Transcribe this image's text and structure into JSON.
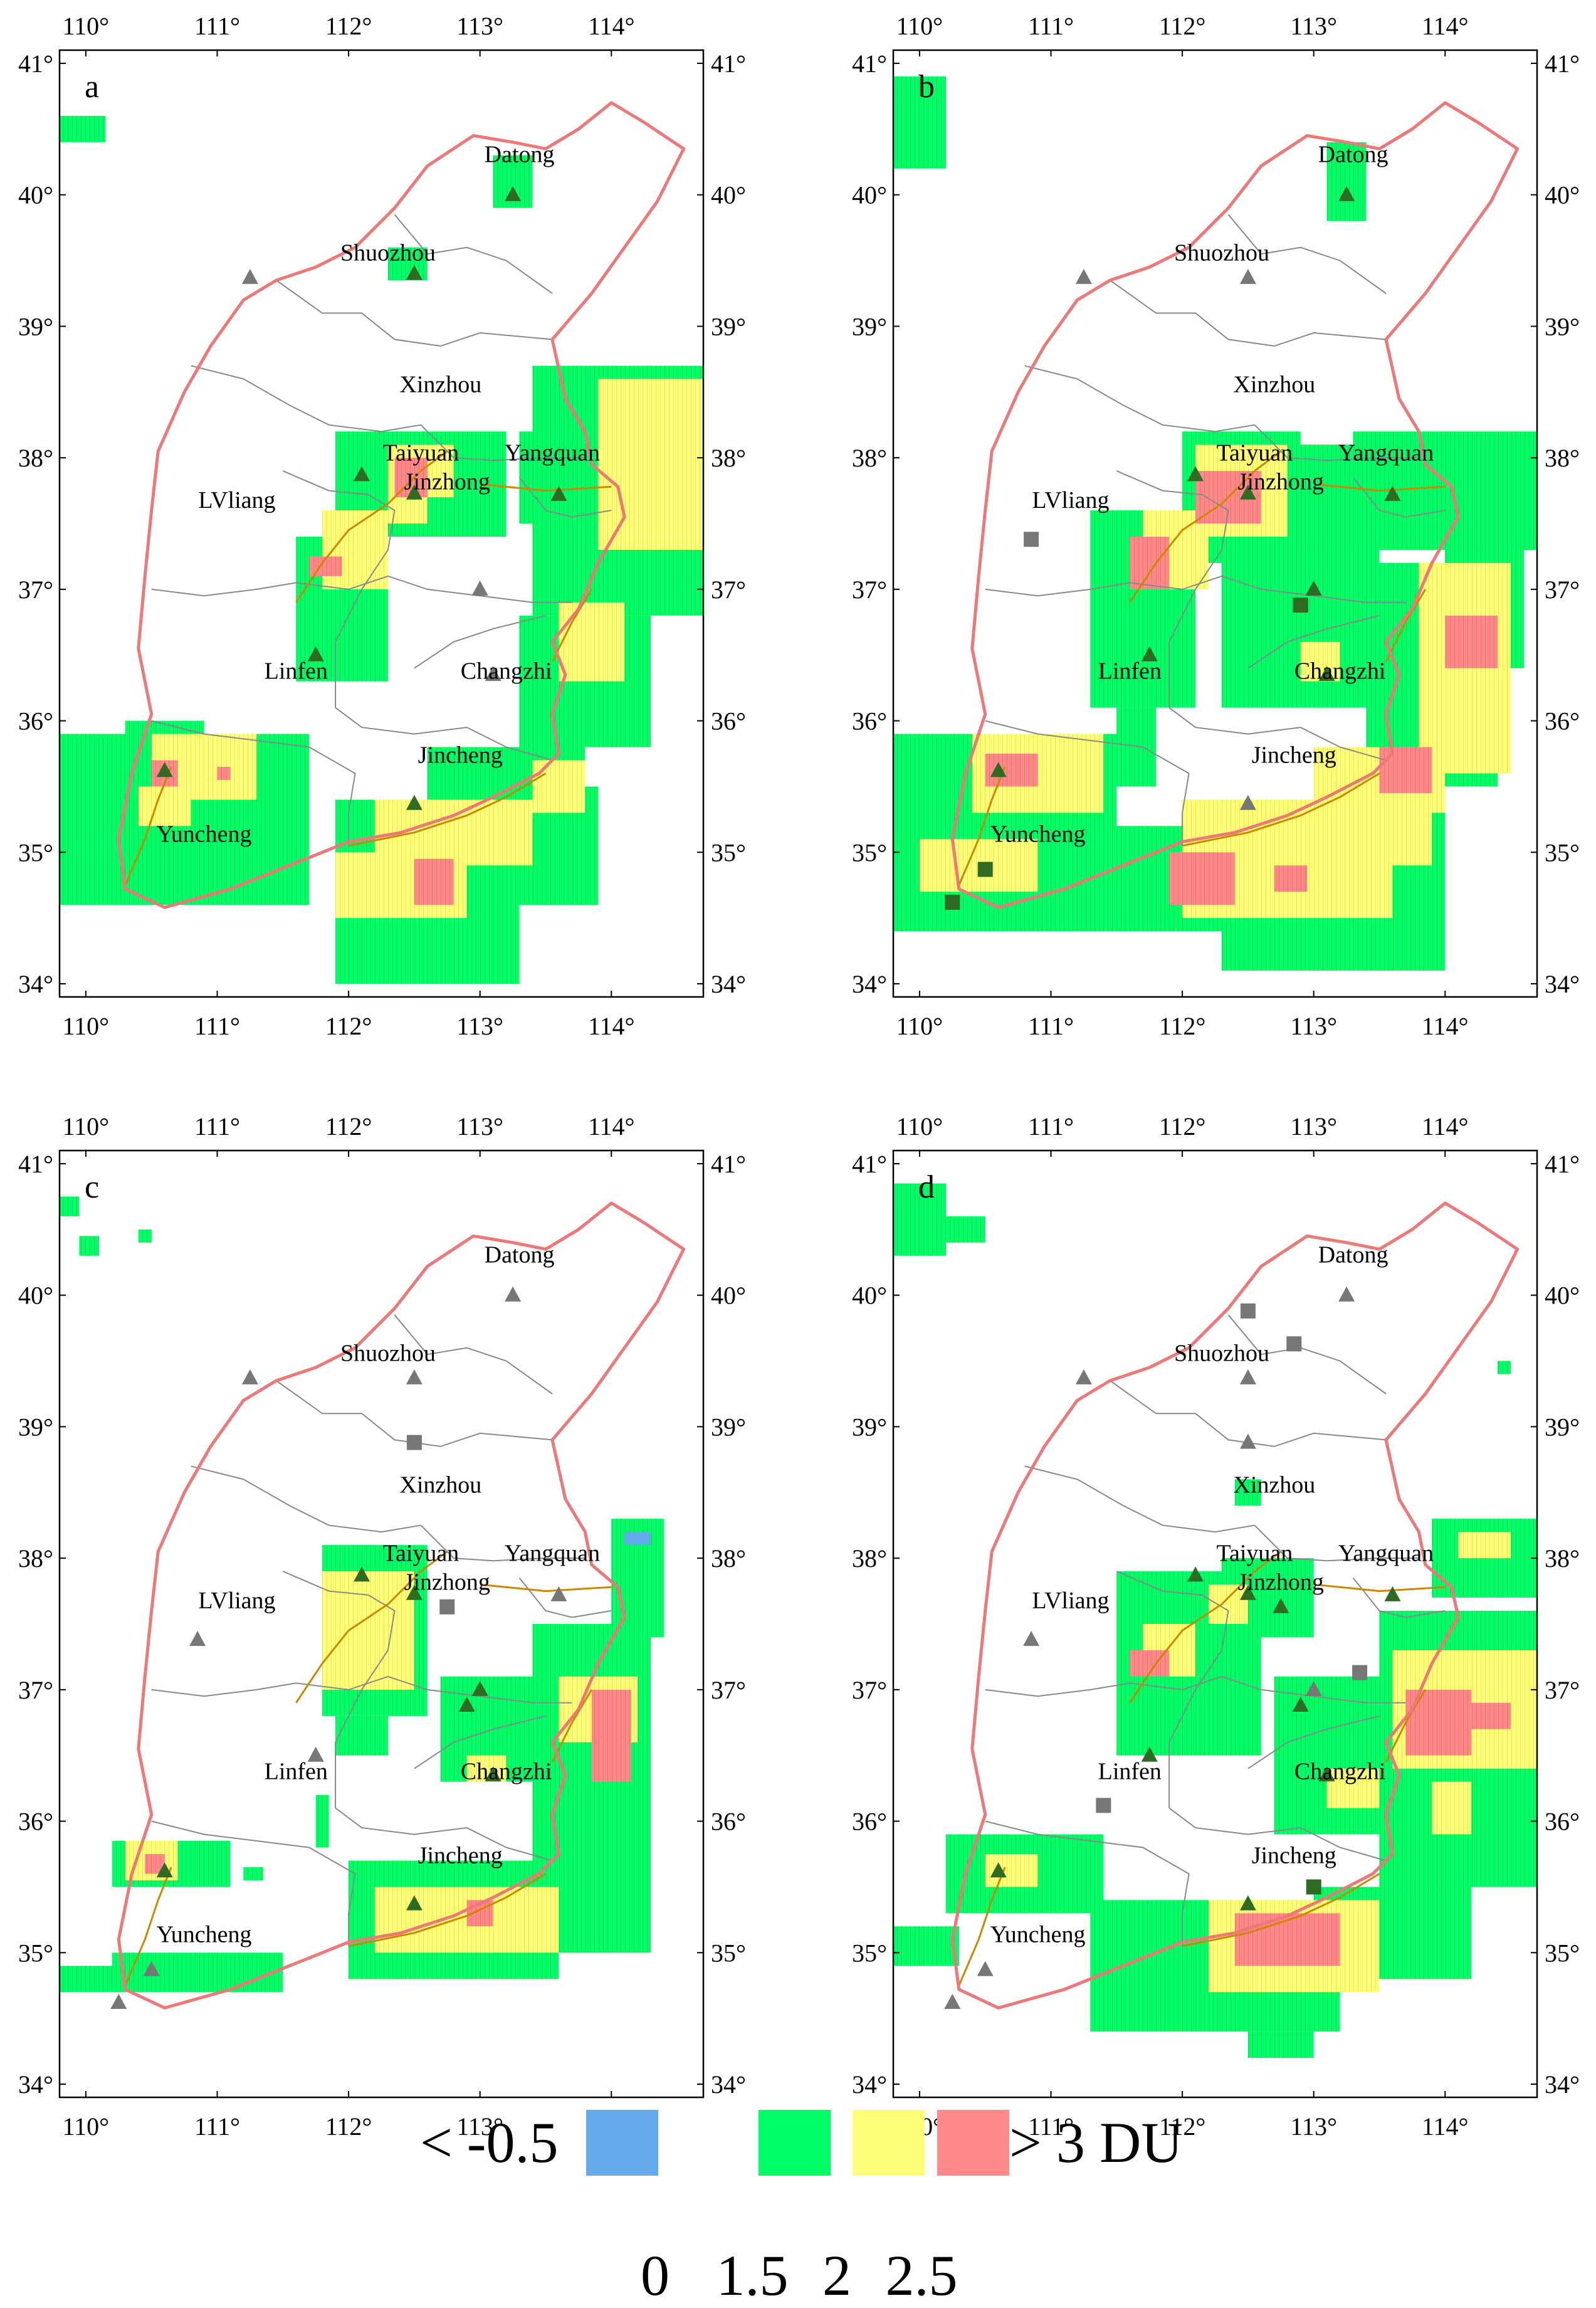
{
  "figure": {
    "panels": [
      {
        "letter": "a",
        "cities": [
          {
            "name": "Datong",
            "lon": 113.3,
            "lat": 40.25
          },
          {
            "name": "Shuozhou",
            "lon": 112.3,
            "lat": 39.5
          },
          {
            "name": "Xinzhou",
            "lon": 112.7,
            "lat": 38.5
          },
          {
            "name": "Taiyuan",
            "lon": 112.55,
            "lat": 37.98
          },
          {
            "name": "Yangquan",
            "lon": 113.55,
            "lat": 37.98
          },
          {
            "name": "Jinzhong",
            "lon": 112.75,
            "lat": 37.76
          },
          {
            "name": "LVliang",
            "lon": 111.15,
            "lat": 37.62
          },
          {
            "name": "Linfen",
            "lon": 111.6,
            "lat": 36.32
          },
          {
            "name": "Changzhi",
            "lon": 113.2,
            "lat": 36.32
          },
          {
            "name": "Jincheng",
            "lon": 112.85,
            "lat": 35.68
          },
          {
            "name": "Yuncheng",
            "lon": 110.9,
            "lat": 35.08
          }
        ]
      },
      {
        "letter": "b",
        "cities": [
          {
            "name": "Datong",
            "lon": 113.3,
            "lat": 40.25
          },
          {
            "name": "Shuozhou",
            "lon": 112.3,
            "lat": 39.5
          },
          {
            "name": "Xinzhou",
            "lon": 112.7,
            "lat": 38.5
          },
          {
            "name": "Taiyuan",
            "lon": 112.55,
            "lat": 37.98
          },
          {
            "name": "Yangquan",
            "lon": 113.55,
            "lat": 37.98
          },
          {
            "name": "Jinzhong",
            "lon": 112.75,
            "lat": 37.76
          },
          {
            "name": "LVliang",
            "lon": 111.15,
            "lat": 37.62
          },
          {
            "name": "Linfen",
            "lon": 111.6,
            "lat": 36.32
          },
          {
            "name": "Changzhi",
            "lon": 113.2,
            "lat": 36.32
          },
          {
            "name": "Jincheng",
            "lon": 112.85,
            "lat": 35.68
          },
          {
            "name": "Yuncheng",
            "lon": 110.9,
            "lat": 35.08
          }
        ]
      },
      {
        "letter": "c",
        "cities": [
          {
            "name": "Datong",
            "lon": 113.3,
            "lat": 40.25
          },
          {
            "name": "Shuozhou",
            "lon": 112.3,
            "lat": 39.5
          },
          {
            "name": "Xinzhou",
            "lon": 112.7,
            "lat": 38.5
          },
          {
            "name": "Taiyuan",
            "lon": 112.55,
            "lat": 37.98
          },
          {
            "name": "Yangquan",
            "lon": 113.55,
            "lat": 37.98
          },
          {
            "name": "Jinzhong",
            "lon": 112.75,
            "lat": 37.76
          },
          {
            "name": "LVliang",
            "lon": 111.15,
            "lat": 37.62
          },
          {
            "name": "Linfen",
            "lon": 111.6,
            "lat": 36.32
          },
          {
            "name": "Changzhi",
            "lon": 113.2,
            "lat": 36.32
          },
          {
            "name": "Jincheng",
            "lon": 112.85,
            "lat": 35.68
          },
          {
            "name": "Yuncheng",
            "lon": 110.9,
            "lat": 35.08
          }
        ]
      },
      {
        "letter": "d",
        "cities": [
          {
            "name": "Datong",
            "lon": 113.3,
            "lat": 40.25
          },
          {
            "name": "Shuozhou",
            "lon": 112.3,
            "lat": 39.5
          },
          {
            "name": "Xinzhou",
            "lon": 112.7,
            "lat": 38.5
          },
          {
            "name": "Taiyuan",
            "lon": 112.55,
            "lat": 37.98
          },
          {
            "name": "Yangquan",
            "lon": 113.55,
            "lat": 37.98
          },
          {
            "name": "Jinzhong",
            "lon": 112.75,
            "lat": 37.76
          },
          {
            "name": "LVliang",
            "lon": 111.15,
            "lat": 37.62
          },
          {
            "name": "Linfen",
            "lon": 111.6,
            "lat": 36.32
          },
          {
            "name": "Changzhi",
            "lon": 113.2,
            "lat": 36.32
          },
          {
            "name": "Jincheng",
            "lon": 112.85,
            "lat": 35.68
          },
          {
            "name": "Yuncheng",
            "lon": 110.9,
            "lat": 35.08
          }
        ]
      }
    ],
    "axes": {
      "lon_ticks": [
        "110°",
        "111°",
        "112°",
        "113°",
        "114°"
      ],
      "lat_ticks": [
        "34°",
        "35°",
        "36°",
        "37°",
        "38°",
        "39°",
        "40°",
        "41°"
      ],
      "lon_range": [
        109.8,
        114.7
      ],
      "lat_range": [
        33.9,
        41.1
      ]
    },
    "legend": {
      "low_label": "< -0.5",
      "high_label": "> 3 DU",
      "tick_labels": [
        "0",
        "1.5",
        "2",
        "2.5"
      ],
      "colors": {
        "negative": "#66aaee",
        "level1": "#00ff66",
        "level2": "#ffff77",
        "level3": "#ff8888"
      }
    },
    "style": {
      "province_border_color": "#ee7777",
      "city_border_color": "#888888",
      "river_color": "#cc8800",
      "station_color": "#777777",
      "station_color_active": "#2f6b22"
    }
  }
}
